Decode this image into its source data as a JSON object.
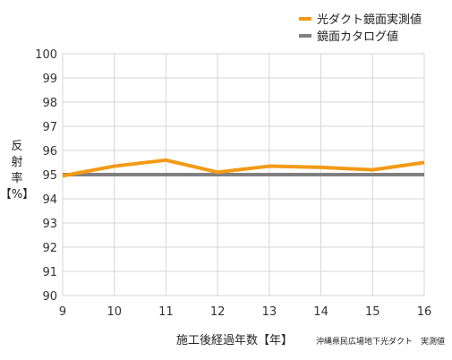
{
  "chart_data": {
    "type": "line",
    "title": "",
    "xlabel": "施工後経過年数【年】",
    "ylabel_lines": [
      "反",
      "射",
      "率",
      "【%】"
    ],
    "note": "沖縄県民広場地下光ダクト　実測値",
    "x": [
      9,
      10,
      11,
      12,
      13,
      14,
      15,
      16
    ],
    "xlim": [
      9,
      16
    ],
    "ylim": [
      90,
      100
    ],
    "yticks": [
      90,
      91,
      92,
      93,
      94,
      95,
      96,
      97,
      98,
      99,
      100
    ],
    "grid": true,
    "legend_position": "top-right",
    "series": [
      {
        "name": "光ダクト鏡面実測値",
        "color": "#f39a16",
        "values": [
          94.95,
          95.35,
          95.6,
          95.1,
          95.35,
          95.3,
          95.2,
          95.5
        ]
      },
      {
        "name": "鏡面カタログ値",
        "color": "#808080",
        "values": [
          95,
          95,
          95,
          95,
          95,
          95,
          95,
          95
        ]
      }
    ]
  }
}
